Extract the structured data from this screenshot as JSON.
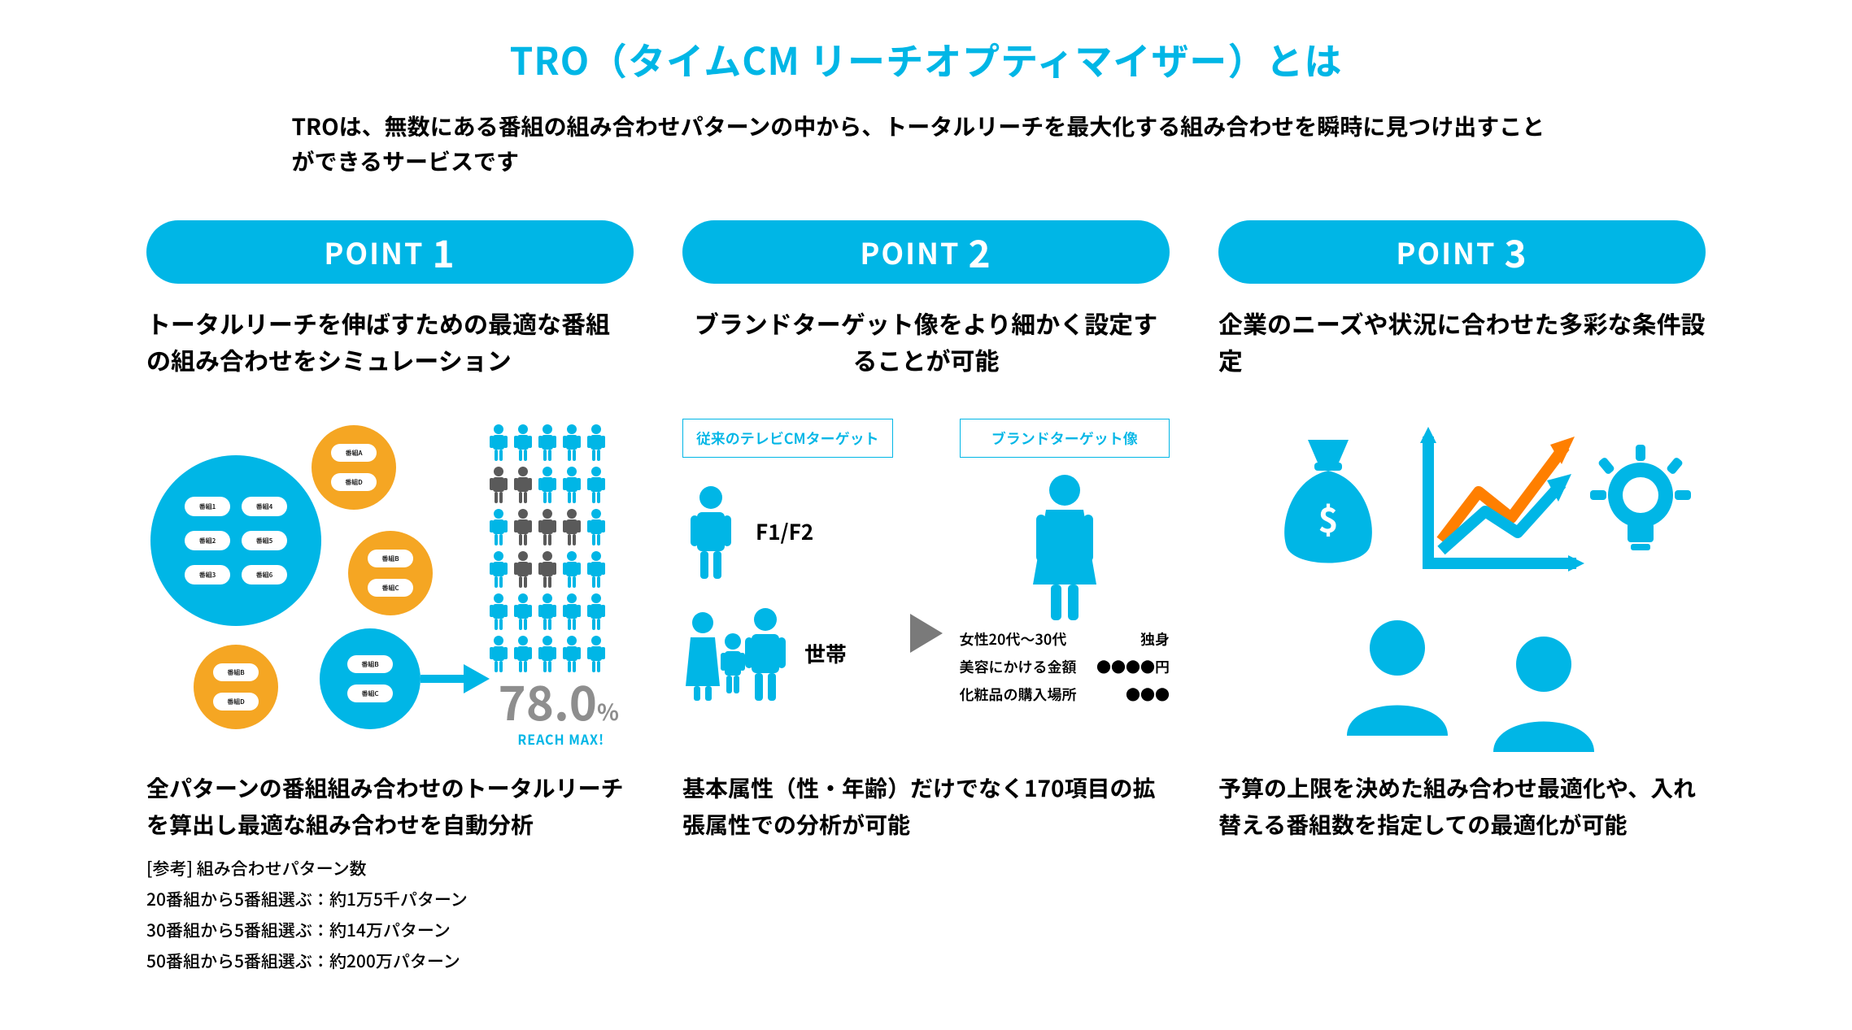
{
  "colors": {
    "accent": "#00b6e6",
    "orange": "#f5a623",
    "gray": "#5a5a5a",
    "midgray": "#8e8e8e",
    "chart_orange": "#FF7F00"
  },
  "title": "TRO（タイムCM リーチオプティマイザー）とは",
  "subtitle": "TROは、無数にある番組の組み合わせパターンの中から、トータルリーチを最大化する組み合わせを瞬時に見つけ出すことができるサービスです",
  "points": [
    {
      "pill_prefix": "POINT",
      "pill_num": "1",
      "lead": "トータルリーチを伸ばすための最適な番組の組み合わせをシミュレーション",
      "below": "全パターンの番組組み合わせのトータルリーチを算出し最適な組み合わせを自動分析",
      "ref_title": "[参考] 組み合わせパターン数",
      "ref_lines": [
        "20番組から5番組選ぶ：約1万5千パターン",
        "30番組から5番組選ぶ：約14万パターン",
        "50番組から5番組選ぶ：約200万パターン"
      ],
      "big_circle_labels": [
        "番組1",
        "番組2",
        "番組3",
        "番組4",
        "番組5",
        "番組6"
      ],
      "sat_labels_top": [
        "番組A",
        "番組D"
      ],
      "sat_labels_mid": [
        "番組B",
        "番組C"
      ],
      "sat_labels_arrow": [
        "番組B",
        "番組C"
      ],
      "sat_labels_bot": [
        "番組B",
        "番組D"
      ],
      "reach_value": "78.0",
      "reach_pct_sign": "%",
      "reach_max": "REACH MAX!",
      "person_grid": {
        "rows": 6,
        "cols": 5,
        "gray_idx": [
          5,
          6,
          11,
          12,
          13,
          16,
          17
        ],
        "color_on": "#00b6e6",
        "color_off": "#5a5a5a"
      }
    },
    {
      "pill_prefix": "POINT",
      "pill_num": "2",
      "lead": "ブランドターゲット像をより細かく設定することが可能",
      "below": "基本属性（性・年齢）だけでなく170項目の拡張属性での分析が可能",
      "box_left": "従来のテレビCMターゲット",
      "box_right": "ブランドターゲット像",
      "row1_label": "F1/F2",
      "row2_label": "世帯",
      "attrs": [
        {
          "l": "女性20代〜30代",
          "r": "独身"
        },
        {
          "l": "美容にかける金額",
          "r": "●●●●円"
        },
        {
          "l": "化粧品の購入場所",
          "r": "●●●"
        }
      ]
    },
    {
      "pill_prefix": "POINT",
      "pill_num": "3",
      "lead": "企業のニーズや状況に合わせた多彩な条件設定",
      "below": "予算の上限を決めた組み合わせ最適化や、入れ替える番組数を指定しての最適化が可能"
    }
  ]
}
